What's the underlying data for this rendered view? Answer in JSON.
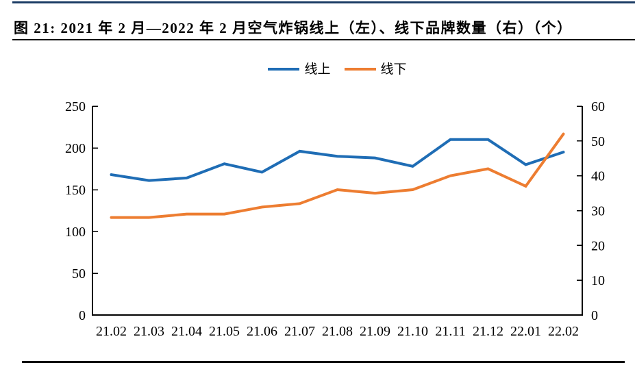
{
  "chart_data": {
    "type": "line",
    "title": "图 21: 2021 年 2 月—2022 年 2 月空气炸锅线上（左）、线下品牌数量（右）（个）",
    "categories": [
      "21.02",
      "21.03",
      "21.04",
      "21.05",
      "21.06",
      "21.07",
      "21.08",
      "21.09",
      "21.10",
      "21.11",
      "21.12",
      "22.01",
      "22.02"
    ],
    "series": [
      {
        "name": "线上",
        "axis": "left",
        "color": "#1F6DB5",
        "values": [
          168,
          161,
          164,
          181,
          171,
          196,
          190,
          188,
          178,
          210,
          210,
          180,
          195
        ]
      },
      {
        "name": "线下",
        "axis": "right",
        "color": "#ED7D31",
        "values": [
          28,
          28,
          29,
          29,
          31,
          32,
          36,
          35,
          36,
          40,
          42,
          37,
          52
        ]
      }
    ],
    "left_axis": {
      "min": 0,
      "max": 250,
      "ticks": [
        0,
        50,
        100,
        150,
        200,
        250
      ]
    },
    "right_axis": {
      "min": 0,
      "max": 60,
      "ticks": [
        0,
        10,
        20,
        30,
        40,
        50,
        60
      ]
    },
    "legend_position": "top",
    "grid": false,
    "axis_color": "#000000",
    "accent_rule_color": "#1B3C64"
  }
}
